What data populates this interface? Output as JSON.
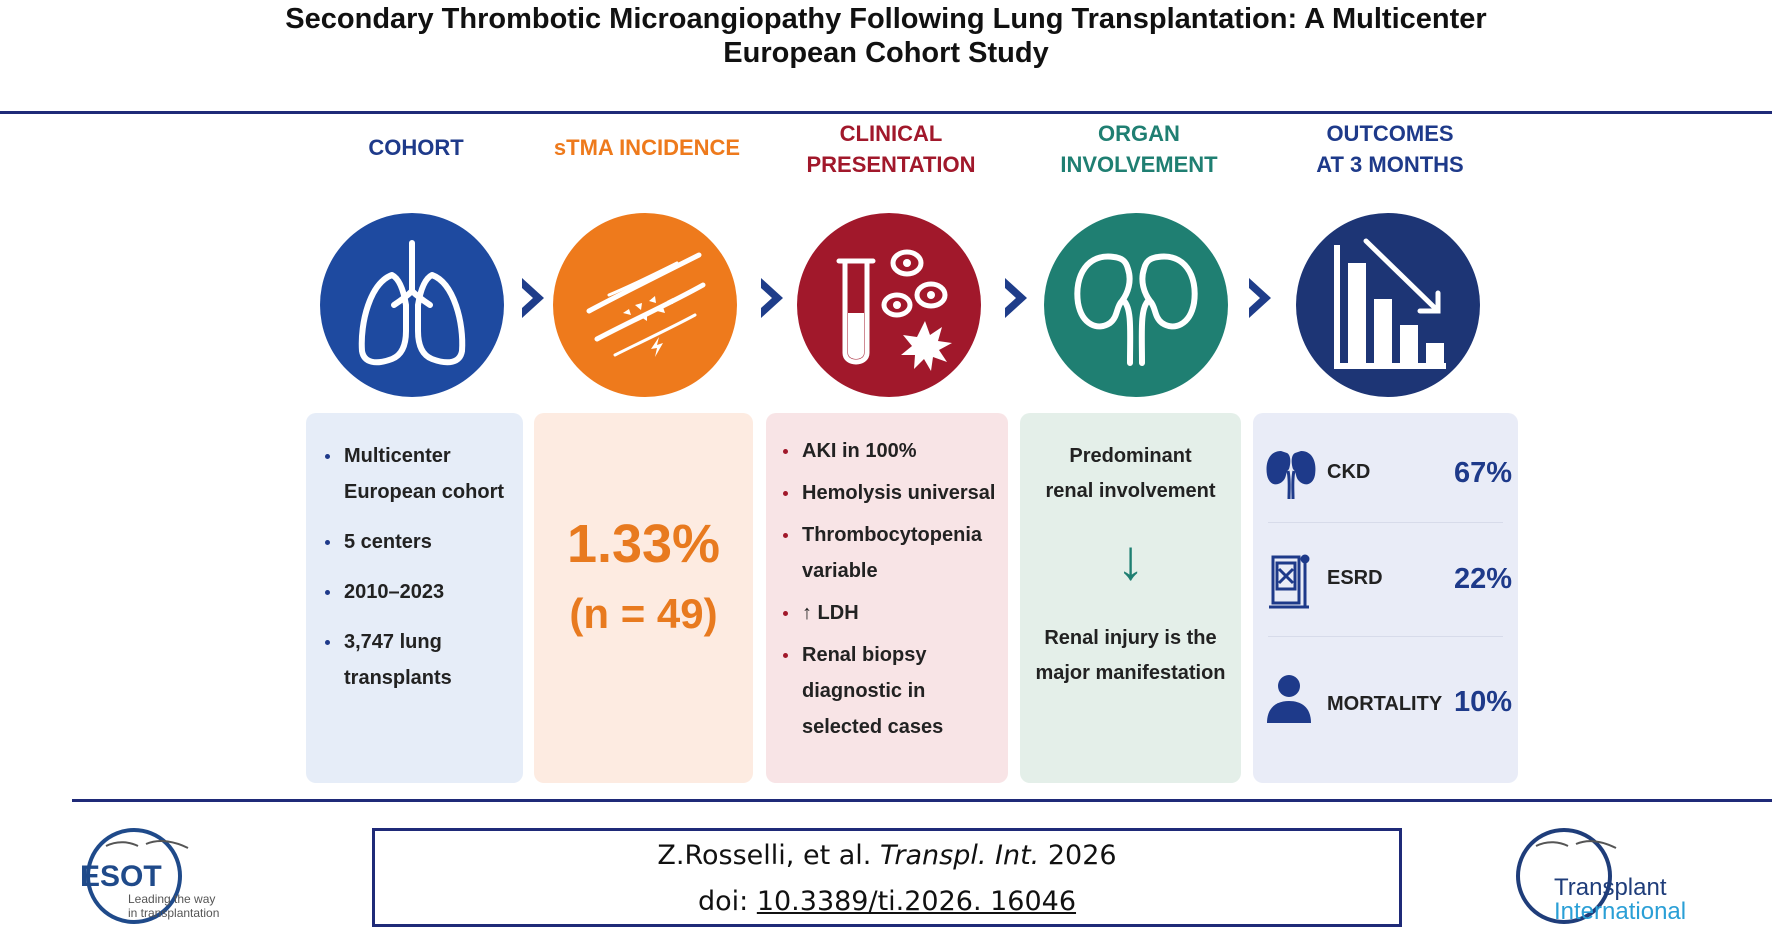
{
  "title": {
    "line1": "Secondary Thrombotic Microangiopathy Following Lung Transplantation: A Multicenter",
    "line2": "European Cohort Study"
  },
  "colors": {
    "navy": "#1f2a78",
    "cohort_blue": "#1e4aa0",
    "incidence_orange": "#ee7a1c",
    "clinical_red": "#a1182b",
    "organ_teal": "#1f7f72",
    "outcome_navy": "#1d3575"
  },
  "columns": [
    {
      "heading_1": "COHORT",
      "heading_2": "",
      "icon": "lungs-icon"
    },
    {
      "heading_1": "sTMA INCIDENCE",
      "heading_2": "",
      "icon": "blood-vessel-icon"
    },
    {
      "heading_1": "CLINICAL",
      "heading_2": "PRESENTATION",
      "icon": "test-tube-icon"
    },
    {
      "heading_1": "ORGAN",
      "heading_2": "INVOLVEMENT",
      "icon": "kidneys-icon"
    },
    {
      "heading_1": "OUTCOMES",
      "heading_2": "AT 3 MONTHS",
      "icon": "declining-bar-chart-icon"
    }
  ],
  "cohort": {
    "bullets": [
      {
        "line1": "Multicenter",
        "line2": "European cohort"
      },
      {
        "line1": "5 centers",
        "line2": ""
      },
      {
        "line1": "2010–2023",
        "line2": ""
      },
      {
        "line1": "3,747 lung",
        "line2": "transplants"
      }
    ]
  },
  "incidence": {
    "percent": "1.33%",
    "n": "(n = 49)"
  },
  "clinical": {
    "bullets": [
      {
        "line1": "AKI in 100%",
        "line2": "",
        "line3": ""
      },
      {
        "line1": "Hemolysis universal",
        "line2": "",
        "line3": ""
      },
      {
        "line1": "Thrombocytopenia",
        "line2": "variable",
        "line3": ""
      },
      {
        "line1": "↑ LDH",
        "line2": "",
        "line3": ""
      },
      {
        "line1": "Renal biopsy",
        "line2": "diagnostic in",
        "line3": "selected cases"
      }
    ]
  },
  "organ": {
    "top_line1": "Predominant",
    "top_line2": "renal involvement",
    "arrow": "↓",
    "bottom_line1": "Renal injury is the",
    "bottom_line2": "major manifestation"
  },
  "outcomes": [
    {
      "label": "CKD",
      "value": "67%",
      "icon": "kidneys-icon"
    },
    {
      "label": "ESRD",
      "value": "22%",
      "icon": "dialysis-machine-icon"
    },
    {
      "label": "MORTALITY",
      "value": "10%",
      "icon": "person-icon"
    }
  ],
  "citation": {
    "authors": "Z.Rosselli, et al.",
    "journal": "Transpl. Int.",
    "year": "2026",
    "doi_prefix": "doi:",
    "doi": "10.3389/ti.2026. 16046"
  },
  "logos": {
    "esot_name": "ESOT",
    "esot_tagline1": "Leading the way",
    "esot_tagline2": "in transplantation",
    "ti_line1": "Transplant",
    "ti_line2": "International"
  }
}
